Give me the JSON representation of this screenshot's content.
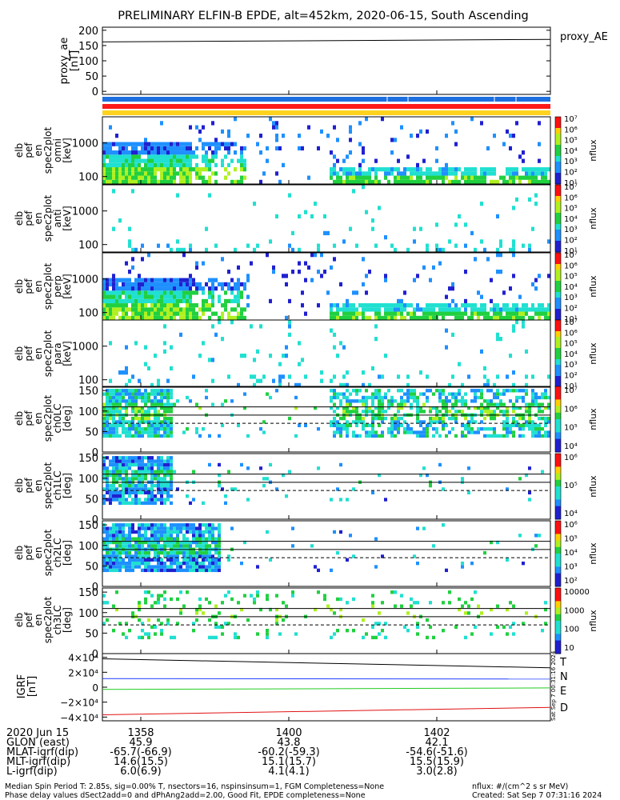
{
  "title": "PRELIMINARY ELFIN-B EPDE, alt=452km, 2020-06-15, South Ascending",
  "colors": {
    "orbit_bar": "#1e6fe0",
    "red_bar": "#ff1a1a",
    "yellow_bar": "#ffd21e",
    "T": "#000000",
    "N": "#1e3cff",
    "E": "#22cc22",
    "D": "#e01010"
  },
  "proxy_ae": {
    "ylabel": [
      "proxy_ae",
      "[nT]"
    ],
    "ticks": [
      "200",
      "150",
      "100",
      "50",
      "0"
    ],
    "legend": "proxy_AE",
    "ylim": [
      -10,
      210
    ]
  },
  "spec_panels": [
    {
      "label": [
        "elb",
        "pef",
        "en",
        "spec2plot",
        "omni",
        "[keV]"
      ],
      "ticks": [
        "1000",
        "100"
      ],
      "cb_ticks": [
        "10⁷",
        "10⁶",
        "10⁵",
        "10⁴",
        "10³",
        "10²",
        "10¹"
      ],
      "cb_label": "nflux"
    },
    {
      "label": [
        "elb",
        "pef",
        "en",
        "spec2plot",
        "anti",
        "[keV]"
      ],
      "ticks": [
        "1000",
        "100"
      ],
      "cb_ticks": [
        "10⁷",
        "10⁶",
        "10⁵",
        "10⁴",
        "10³",
        "10²",
        "10¹"
      ],
      "cb_label": "nflux"
    },
    {
      "label": [
        "elb",
        "pef",
        "en",
        "spec2plot",
        "perp",
        "[keV]"
      ],
      "ticks": [
        "1000",
        "100"
      ],
      "cb_ticks": [
        "10⁷",
        "10⁶",
        "10⁵",
        "10⁴",
        "10³",
        "10²",
        "10¹"
      ],
      "cb_label": "nflux"
    },
    {
      "label": [
        "elb",
        "pef",
        "en",
        "spec2plot",
        "para",
        "[keV]"
      ],
      "ticks": [
        "1000",
        "100"
      ],
      "cb_ticks": [
        "10⁷",
        "10⁶",
        "10⁵",
        "10⁴",
        "10³",
        "10²",
        "10¹"
      ],
      "cb_label": "nflux"
    }
  ],
  "pa_panels": [
    {
      "label": [
        "elb",
        "pef",
        "en",
        "spec2plot",
        "ch0LC",
        "[deg]"
      ],
      "ticks": [
        "150",
        "100",
        "50",
        "0"
      ],
      "cb_ticks": [
        "10⁷",
        "10⁶",
        "10⁵",
        "10⁴"
      ],
      "cb_label": "nflux"
    },
    {
      "label": [
        "elb",
        "pef",
        "en",
        "spec2plot",
        "ch1LC",
        "[deg]"
      ],
      "ticks": [
        "150",
        "100",
        "50",
        "0"
      ],
      "cb_ticks": [
        "10⁶",
        "10⁵",
        "10⁴"
      ],
      "cb_label": "nflux"
    },
    {
      "label": [
        "elb",
        "pef",
        "en",
        "spec2plot",
        "ch2LC",
        "[deg]"
      ],
      "ticks": [
        "150",
        "100",
        "50",
        "0"
      ],
      "cb_ticks": [
        "10⁶",
        "10⁵",
        "10⁴",
        "10³",
        "10²"
      ],
      "cb_label": "nflux"
    },
    {
      "label": [
        "elb",
        "pef",
        "en",
        "spec2plot",
        "ch3LC",
        "[deg]"
      ],
      "ticks": [
        "150",
        "100",
        "50",
        "0"
      ],
      "cb_ticks": [
        "10000",
        "1000",
        "100",
        "10"
      ],
      "cb_label": "nflux"
    }
  ],
  "igrf": {
    "ylabel": [
      "IGRF",
      "[nT]"
    ],
    "ticks": [
      "4×10⁴",
      "2×10⁴",
      "0",
      "−2×10⁴",
      "−4×10⁴"
    ],
    "legend": [
      "T",
      "N",
      "E",
      "D"
    ],
    "side_text": "Sat Sep  7 00:31:16 2024"
  },
  "chart_data": {
    "type": "heatmap",
    "title": "PRELIMINARY ELFIN-B EPDE, alt=452km, 2020-06-15, South Ascending",
    "x_tick_labels": [
      "1358",
      "1400",
      "1402"
    ],
    "series": [
      {
        "name": "proxy_AE",
        "type": "line",
        "x": [
          0,
          1
        ],
        "values": [
          162,
          170
        ]
      },
      {
        "name": "T",
        "type": "line",
        "x": [
          0,
          1
        ],
        "values": [
          38000,
          26000
        ]
      },
      {
        "name": "N",
        "type": "line",
        "x": [
          0,
          1
        ],
        "values": [
          11500,
          11000
        ]
      },
      {
        "name": "E",
        "type": "line",
        "x": [
          0,
          1
        ],
        "values": [
          -3000,
          -1000
        ]
      },
      {
        "name": "D",
        "type": "line",
        "x": [
          0,
          1
        ],
        "values": [
          -37000,
          -27000
        ]
      }
    ],
    "energy_range_keV": [
      60,
      6000
    ],
    "pitch_angle_range_deg": [
      0,
      160
    ],
    "grid": false
  },
  "footer": {
    "rows": [
      {
        "label": "2020 Jun 15",
        "values": [
          "1358",
          "1400",
          "1402"
        ]
      },
      {
        "label": "GLON (east)",
        "values": [
          "45.9",
          "43.8",
          "42.1"
        ]
      },
      {
        "label": "MLAT-igrf(dip)",
        "values": [
          "-65.7(-66.9)",
          "-60.2(-59.3)",
          "-54.6(-51.6)"
        ]
      },
      {
        "label": "MLT-igrf(dip)",
        "values": [
          "14.6(15.5)",
          "15.1(15.7)",
          "15.5(15.9)"
        ]
      },
      {
        "label": "L-igrf(dip)",
        "values": [
          "6.0(6.9)",
          "4.1(4.1)",
          "3.0(2.8)"
        ]
      }
    ],
    "note1": "Median Spin Period T: 2.85s, sig=0.00% T, nsectors=16, nspinsinsum=1, FGM Completeness=None",
    "note2": "Phase delay values dSect2add=0 and dPhAng2add=2.00, Good Fit, EPDE completeness=None",
    "units": "nflux: #/(cm^2 s sr MeV)",
    "created": "Created: Sat Sep  7 07:31:16 2024"
  }
}
